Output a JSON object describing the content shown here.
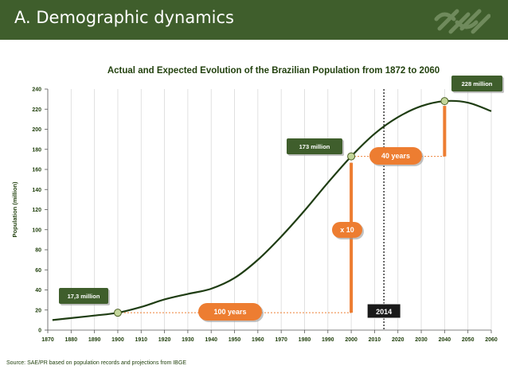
{
  "header": {
    "title": "A. Demographic dynamics",
    "background": "#3f5e2c",
    "logo_icon": "interlocking-chain-logo"
  },
  "chart_data": {
    "type": "line",
    "title": "Actual and Expected Evolution of the Brazilian Population from 1872 to 2060",
    "ylabel": "Population (million)",
    "xlabel": "",
    "xlim": [
      1870,
      2060
    ],
    "ylim": [
      0,
      240
    ],
    "x_ticks": [
      1870,
      1880,
      1890,
      1900,
      1910,
      1920,
      1930,
      1940,
      1950,
      1960,
      1970,
      1980,
      1990,
      2000,
      2010,
      2020,
      2030,
      2040,
      2050,
      2060
    ],
    "y_ticks": [
      0,
      20,
      40,
      60,
      80,
      100,
      120,
      140,
      160,
      180,
      200,
      220,
      240
    ],
    "grid": "vertical",
    "series": [
      {
        "color": "#1f3d13",
        "x": [
          1872,
          1880,
          1890,
          1900,
          1910,
          1920,
          1930,
          1940,
          1950,
          1960,
          1970,
          1980,
          1990,
          2000,
          2010,
          2020,
          2030,
          2040,
          2050,
          2060
        ],
        "y": [
          10,
          12,
          14.5,
          17.3,
          23,
          30.5,
          36,
          41.2,
          51.9,
          70,
          93.1,
          119,
          146.8,
          173,
          195.5,
          212,
          223,
          228,
          226.5,
          218
        ]
      }
    ],
    "highlighted_points": [
      {
        "x": 1900,
        "y": 17.3,
        "label": "17,3 million"
      },
      {
        "x": 2000,
        "y": 173,
        "label": "173 million"
      },
      {
        "x": 2040,
        "y": 228,
        "label": "228 million"
      }
    ],
    "reference_line": {
      "x": 2014,
      "label": "2014"
    },
    "annotations": {
      "century": "100 years",
      "multiplier": "x 10",
      "forty_years": "40 years"
    },
    "colors": {
      "curve": "#1f3d13",
      "label_box": "#3f5e2c",
      "accent": "#ed7d31",
      "point": "#c3d69b"
    }
  },
  "source": "Source: SAE/PR based on population records and projections from IBGE"
}
